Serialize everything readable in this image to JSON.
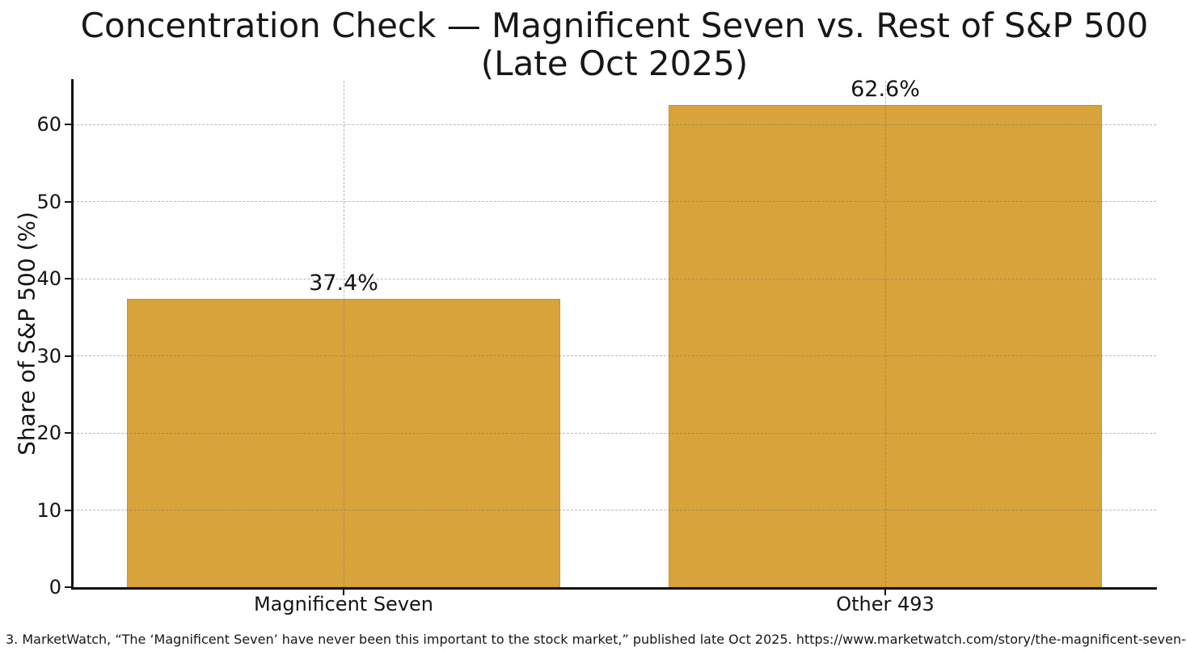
{
  "figure": {
    "footnote": "3. MarketWatch, “The ‘Magnificent Seven’ have never been this important to the stock market,” published late Oct 2025. https://www.marketwatch.com/story/the-magnificent-seven-"
  },
  "chart_data": {
    "type": "bar",
    "title": "Concentration Check — Magnificent Seven vs. Rest of S&P 500 (Late Oct 2025)",
    "title_lines": [
      "Concentration Check — Magnificent Seven vs. Rest of S&P 500",
      "(Late Oct 2025)"
    ],
    "categories": [
      "Magnificent Seven",
      "Other 493"
    ],
    "values": [
      37.4,
      62.6
    ],
    "value_labels": [
      "37.4%",
      "62.6%"
    ],
    "xlabel": "",
    "ylabel": "Share of S&P 500 (%)",
    "ylim": [
      0,
      65.7
    ],
    "yticks": [
      0,
      10,
      20,
      30,
      40,
      50,
      60
    ],
    "grid": "dashed, horizontal at y-ticks and vertical at bar centers, drawn over bars",
    "legend_position": "none",
    "bar_width_fraction": 0.8,
    "bar_color": "#D9A33C",
    "bar_edge_color": "#CB9330",
    "gridline_color": "#737373",
    "text_color": "#141414"
  }
}
